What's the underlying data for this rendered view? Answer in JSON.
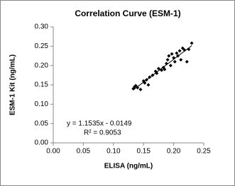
{
  "chart_data": {
    "type": "scatter",
    "title": "Correlation Curve (ESM-1)",
    "x_label": "ELISA (ng/mL)",
    "y_label": "ESM-1 Kit (ng/mL)",
    "annotations": [
      "y = 1.1535x - 0.0149",
      "R² = 0.9053"
    ],
    "color": "#000000",
    "trendline": true,
    "x": [
      0.133,
      0.135,
      0.137,
      0.14,
      0.145,
      0.15,
      0.152,
      0.155,
      0.158,
      0.16,
      0.165,
      0.17,
      0.172,
      0.175,
      0.18,
      0.183,
      0.185,
      0.188,
      0.19,
      0.192,
      0.195,
      0.197,
      0.2,
      0.202,
      0.205,
      0.207,
      0.21,
      0.212,
      0.215,
      0.218,
      0.222,
      0.225,
      0.23
    ],
    "values": [
      0.14,
      0.145,
      0.148,
      0.143,
      0.138,
      0.16,
      0.155,
      0.163,
      0.15,
      0.17,
      0.175,
      0.185,
      0.18,
      0.192,
      0.188,
      0.195,
      0.19,
      0.205,
      0.215,
      0.225,
      0.2,
      0.23,
      0.22,
      0.21,
      0.232,
      0.225,
      0.238,
      0.215,
      0.245,
      0.24,
      0.21,
      0.242,
      0.258
    ],
    "xlim": [
      0,
      0.25
    ],
    "xticks": [
      {
        "value": 0,
        "label": "0.00"
      },
      {
        "value": 0.05,
        "label": "0.05"
      },
      {
        "value": 0.1,
        "label": "0.10"
      },
      {
        "value": 0.15,
        "label": "0.15"
      },
      {
        "value": 0.2,
        "label": "0.20"
      },
      {
        "value": 0.25,
        "label": "0.25"
      }
    ],
    "ylim": [
      0,
      0.3
    ],
    "yticks": [
      {
        "value": 0,
        "label": "0.00"
      },
      {
        "value": 0.05,
        "label": "0.05"
      },
      {
        "value": 0.1,
        "label": "0.10"
      },
      {
        "value": 0.15,
        "label": "0.15"
      },
      {
        "value": 0.2,
        "label": "0.20"
      },
      {
        "value": 0.25,
        "label": "0.25"
      },
      {
        "value": 0.3,
        "label": "0.30"
      }
    ]
  }
}
